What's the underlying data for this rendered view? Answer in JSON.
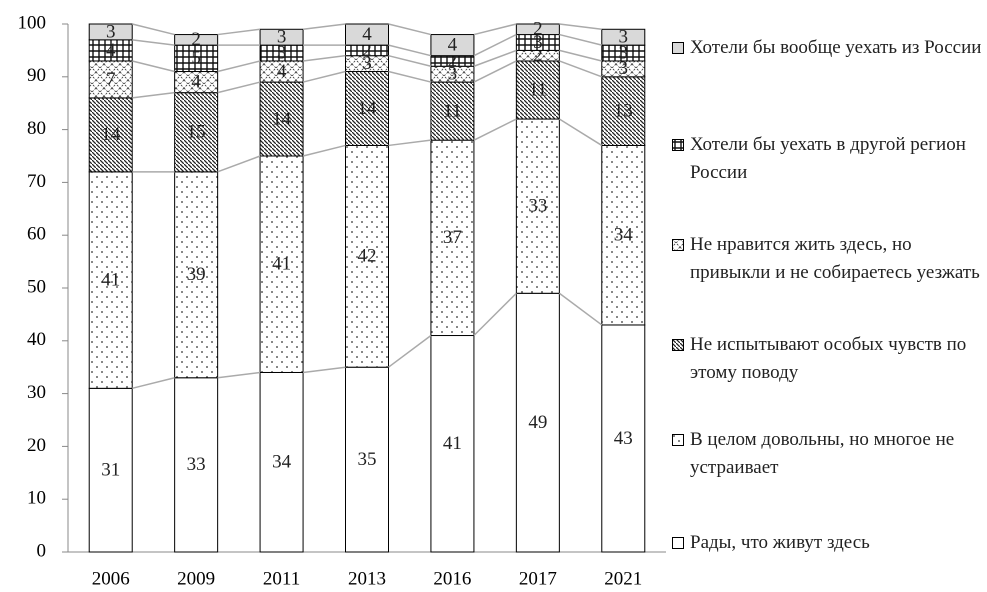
{
  "chart_data": {
    "type": "stacked-bar",
    "categories": [
      "2006",
      "2009",
      "2011",
      "2013",
      "2016",
      "2017",
      "2021"
    ],
    "series": [
      {
        "name": "Рады, что живут здесь",
        "color": "#ffffff",
        "values": [
          31,
          33,
          34,
          35,
          41,
          49,
          43
        ]
      },
      {
        "name": "В целом довольны, но многое не устраивает",
        "color": "#ffffff",
        "values": [
          41,
          39,
          41,
          42,
          37,
          33,
          34
        ]
      },
      {
        "name": "Не испытывают особых чувств по этому поводу",
        "color": "#ffffff",
        "values": [
          14,
          15,
          14,
          14,
          11,
          11,
          13
        ]
      },
      {
        "name": "Не нравится жить здесь, но привыкли и не собираетесь уезжать",
        "color": "#ffffff",
        "values": [
          7,
          4,
          4,
          3,
          3,
          2,
          3
        ]
      },
      {
        "name": "Хотели бы уехать в другой регион России",
        "color": "#ffffff",
        "values": [
          4,
          5,
          3,
          2,
          2,
          3,
          3
        ]
      },
      {
        "name": "Хотели бы вообще уехать из России",
        "color": "#d9d9d9",
        "values": [
          3,
          2,
          3,
          4,
          4,
          2,
          3
        ]
      }
    ],
    "ylim": [
      0,
      100
    ],
    "yticks": [
      0,
      10,
      20,
      30,
      40,
      50,
      60,
      70,
      80,
      90,
      100
    ],
    "grid": false
  }
}
